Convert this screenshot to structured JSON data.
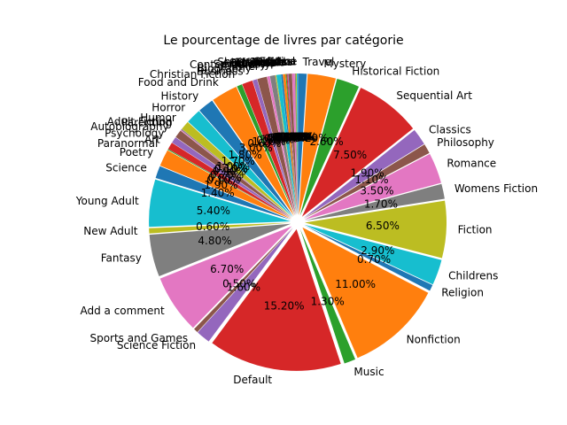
{
  "chart_data": {
    "type": "pie",
    "title": "Le pourcentage de livres par catégorie",
    "start_angle_deg": 90,
    "direction": "clockwise",
    "exploded": true,
    "slices": [
      {
        "label": "Travel",
        "value": 1.0,
        "pct_label": "1.00%",
        "color": "#1f77b4"
      },
      {
        "label": "Mystery",
        "value": 3.2,
        "pct_label": "3.20%",
        "color": "#ff7f0e"
      },
      {
        "label": "Historical Fiction",
        "value": 2.6,
        "pct_label": "2.60%",
        "color": "#2ca02c"
      },
      {
        "label": "Sequential Art",
        "value": 7.5,
        "pct_label": "7.50%",
        "color": "#d62728"
      },
      {
        "label": "Classics",
        "value": 1.9,
        "pct_label": "1.90%",
        "color": "#9467bd"
      },
      {
        "label": "Philosophy",
        "value": 1.1,
        "pct_label": "1.10%",
        "color": "#8c564b"
      },
      {
        "label": "Romance",
        "value": 3.5,
        "pct_label": "3.50%",
        "color": "#e377c2"
      },
      {
        "label": "Womens Fiction",
        "value": 1.7,
        "pct_label": "1.70%",
        "color": "#7f7f7f"
      },
      {
        "label": "Fiction",
        "value": 6.5,
        "pct_label": "6.50%",
        "color": "#bcbd22"
      },
      {
        "label": "Childrens",
        "value": 2.9,
        "pct_label": "2.90%",
        "color": "#17becf"
      },
      {
        "label": "Religion",
        "value": 0.7,
        "pct_label": "0.70%",
        "color": "#1f77b4"
      },
      {
        "label": "Nonfiction",
        "value": 11.0,
        "pct_label": "11.00%",
        "color": "#ff7f0e"
      },
      {
        "label": "Music",
        "value": 1.3,
        "pct_label": "1.30%",
        "color": "#2ca02c"
      },
      {
        "label": "Default",
        "value": 15.2,
        "pct_label": "15.20%",
        "color": "#d62728"
      },
      {
        "label": "Science Fiction",
        "value": 1.6,
        "pct_label": "1.60%",
        "color": "#9467bd"
      },
      {
        "label": "Sports and Games",
        "value": 0.5,
        "pct_label": "0.50%",
        "color": "#8c564b"
      },
      {
        "label": "Add a comment",
        "value": 6.7,
        "pct_label": "6.70%",
        "color": "#e377c2"
      },
      {
        "label": "Fantasy",
        "value": 4.8,
        "pct_label": "4.80%",
        "color": "#7f7f7f"
      },
      {
        "label": "New Adult",
        "value": 0.6,
        "pct_label": "0.60%",
        "color": "#bcbd22"
      },
      {
        "label": "Young Adult",
        "value": 5.4,
        "pct_label": "5.40%",
        "color": "#17becf"
      },
      {
        "label": "Science",
        "value": 1.4,
        "pct_label": "1.40%",
        "color": "#1f77b4"
      },
      {
        "label": "Poetry",
        "value": 1.9,
        "pct_label": "1.90%",
        "color": "#ff7f0e"
      },
      {
        "label": "Paranormal",
        "value": 0.1,
        "pct_label": "0.10%",
        "color": "#2ca02c"
      },
      {
        "label": "Art",
        "value": 0.8,
        "pct_label": "0.80%",
        "color": "#d62728"
      },
      {
        "label": "Psychology",
        "value": 0.7,
        "pct_label": "0.70%",
        "color": "#9467bd"
      },
      {
        "label": "Autobiography",
        "value": 0.9,
        "pct_label": "0.90%",
        "color": "#8c564b"
      },
      {
        "label": "Parenting",
        "value": 0.1,
        "pct_label": "0.10%",
        "color": "#e377c2"
      },
      {
        "label": "Adult Fiction",
        "value": 0.1,
        "pct_label": "0.10%",
        "color": "#7f7f7f"
      },
      {
        "label": "Humor",
        "value": 1.0,
        "pct_label": "1.00%",
        "color": "#bcbd22"
      },
      {
        "label": "Horror",
        "value": 1.7,
        "pct_label": "1.70%",
        "color": "#17becf"
      },
      {
        "label": "History",
        "value": 1.8,
        "pct_label": "1.80%",
        "color": "#1f77b4"
      },
      {
        "label": "Food and Drink",
        "value": 3.0,
        "pct_label": "3.00%",
        "color": "#ff7f0e"
      },
      {
        "label": "Christian Fiction",
        "value": 0.6,
        "pct_label": "0.60%",
        "color": "#2ca02c"
      },
      {
        "label": "Business",
        "value": 1.2,
        "pct_label": "1.20%",
        "color": "#d62728"
      },
      {
        "label": "Biography",
        "value": 0.5,
        "pct_label": "0.50%",
        "color": "#9467bd"
      },
      {
        "label": "Thriller",
        "value": 1.1,
        "pct_label": "1.10%",
        "color": "#8c564b"
      },
      {
        "label": "Contemporary",
        "value": 0.3,
        "pct_label": "0.30%",
        "color": "#e377c2"
      },
      {
        "label": "Spirituality",
        "value": 0.6,
        "pct_label": "0.60%",
        "color": "#7f7f7f"
      },
      {
        "label": "Academic",
        "value": 0.1,
        "pct_label": "0.10%",
        "color": "#bcbd22"
      },
      {
        "label": "Self Help",
        "value": 0.5,
        "pct_label": "0.50%",
        "color": "#17becf"
      },
      {
        "label": "Historical",
        "value": 0.2,
        "pct_label": "0.20%",
        "color": "#1f77b4"
      },
      {
        "label": "Christian",
        "value": 0.3,
        "pct_label": "0.30%",
        "color": "#ff7f0e"
      },
      {
        "label": "Suspense",
        "value": 0.1,
        "pct_label": "0.10%",
        "color": "#2ca02c"
      },
      {
        "label": "Short Stories",
        "value": 0.1,
        "pct_label": "0.10%",
        "color": "#d62728"
      },
      {
        "label": "Novels",
        "value": 0.1,
        "pct_label": "0.10%",
        "color": "#9467bd"
      },
      {
        "label": "Health",
        "value": 0.4,
        "pct_label": "0.40%",
        "color": "#8c564b"
      },
      {
        "label": "Politics",
        "value": 0.3,
        "pct_label": "0.30%",
        "color": "#e377c2"
      },
      {
        "label": "Cultural",
        "value": 0.1,
        "pct_label": "0.10%",
        "color": "#7f7f7f"
      },
      {
        "label": "Erotica",
        "value": 0.1,
        "pct_label": "0.10%",
        "color": "#bcbd22"
      },
      {
        "label": "Crime",
        "value": 0.1,
        "pct_label": "0.10%",
        "color": "#17becf"
      }
    ]
  }
}
